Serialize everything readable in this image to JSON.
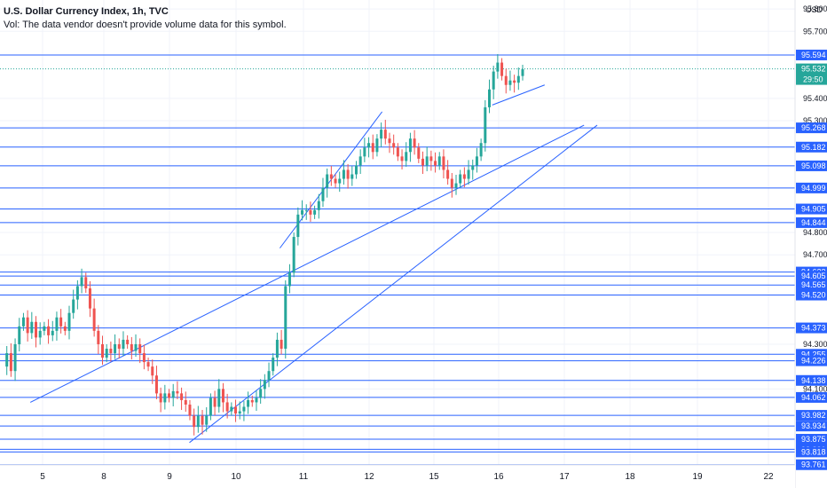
{
  "header": {
    "symbol_title": "U.S. Dollar Currency Index, 1h, TVC",
    "volume_note": "Vol: The data vendor doesn't provide volume data for this symbol."
  },
  "currency_label": "USD",
  "countdown": "29:50",
  "colors": {
    "up": "#26a69a",
    "down": "#ef5350",
    "level_line": "#2962ff",
    "trend_line": "#2962ff",
    "last_price_bg": "#26a69a",
    "grid": "#f0f3fa",
    "axis_text": "#131722"
  },
  "chart_data": {
    "type": "candlestick",
    "title": "U.S. Dollar Currency Index, 1h, TVC",
    "xlabel": "",
    "ylabel": "",
    "ylim": [
      93.76,
      95.84
    ],
    "grid": true,
    "x_ticks": [
      "5",
      "8",
      "9",
      "10",
      "11",
      "12",
      "15",
      "16",
      "17",
      "18",
      "19",
      "22"
    ],
    "y_ticks": [
      95.8,
      95.7,
      95.4,
      95.3,
      94.8,
      94.7,
      94.3,
      94.1
    ],
    "last_price": 95.532,
    "horizontal_levels": [
      95.594,
      95.268,
      95.182,
      95.098,
      94.999,
      94.905,
      94.844,
      94.623,
      94.605,
      94.565,
      94.52,
      94.373,
      94.255,
      94.226,
      94.138,
      94.062,
      93.982,
      93.934,
      93.875,
      93.83,
      93.818,
      93.761
    ],
    "trendlines": [
      {
        "x": [
          "4.4",
          "17.3"
        ],
        "y": [
          94.04,
          95.28
        ]
      },
      {
        "x": [
          "9.3",
          "17.5"
        ],
        "y": [
          93.86,
          95.28
        ]
      },
      {
        "x": [
          "10.65",
          "12.6"
        ],
        "y": [
          94.73,
          95.34
        ]
      },
      {
        "x": [
          "15.9",
          "16.7"
        ],
        "y": [
          95.37,
          95.46
        ]
      }
    ],
    "candles_note": "approximate hourly OHLC path",
    "price_path": [
      94.2,
      94.26,
      94.18,
      94.3,
      94.38,
      94.42,
      94.35,
      94.4,
      94.33,
      94.36,
      94.38,
      94.34,
      94.36,
      94.42,
      94.38,
      94.36,
      94.44,
      94.5,
      94.56,
      94.6,
      94.55,
      94.46,
      94.36,
      94.3,
      94.24,
      94.28,
      94.26,
      94.3,
      94.28,
      94.32,
      94.3,
      94.27,
      94.3,
      94.26,
      94.22,
      94.2,
      94.16,
      94.08,
      94.04,
      94.08,
      94.06,
      94.09,
      94.08,
      94.05,
      94.03,
      93.98,
      93.93,
      93.98,
      93.94,
      93.98,
      94.06,
      94.02,
      94.1,
      94.04,
      94.0,
      94.02,
      93.99,
      94.0,
      94.02,
      94.05,
      94.04,
      94.06,
      94.1,
      94.14,
      94.18,
      94.24,
      94.32,
      94.28,
      94.56,
      94.62,
      94.78,
      94.88,
      94.9,
      94.9,
      94.88,
      94.9,
      94.94,
      95.0,
      95.06,
      95.04,
      95.02,
      95.04,
      95.08,
      95.04,
      95.06,
      95.1,
      95.14,
      95.18,
      95.2,
      95.16,
      95.22,
      95.26,
      95.22,
      95.2,
      95.18,
      95.14,
      95.12,
      95.16,
      95.22,
      95.18,
      95.13,
      95.1,
      95.14,
      95.12,
      95.1,
      95.14,
      95.08,
      95.04,
      95.0,
      95.02,
      95.06,
      95.04,
      95.08,
      95.1,
      95.14,
      95.2,
      95.36,
      95.44,
      95.52,
      95.56,
      95.5,
      95.46,
      95.48,
      95.47,
      95.5,
      95.53
    ]
  }
}
